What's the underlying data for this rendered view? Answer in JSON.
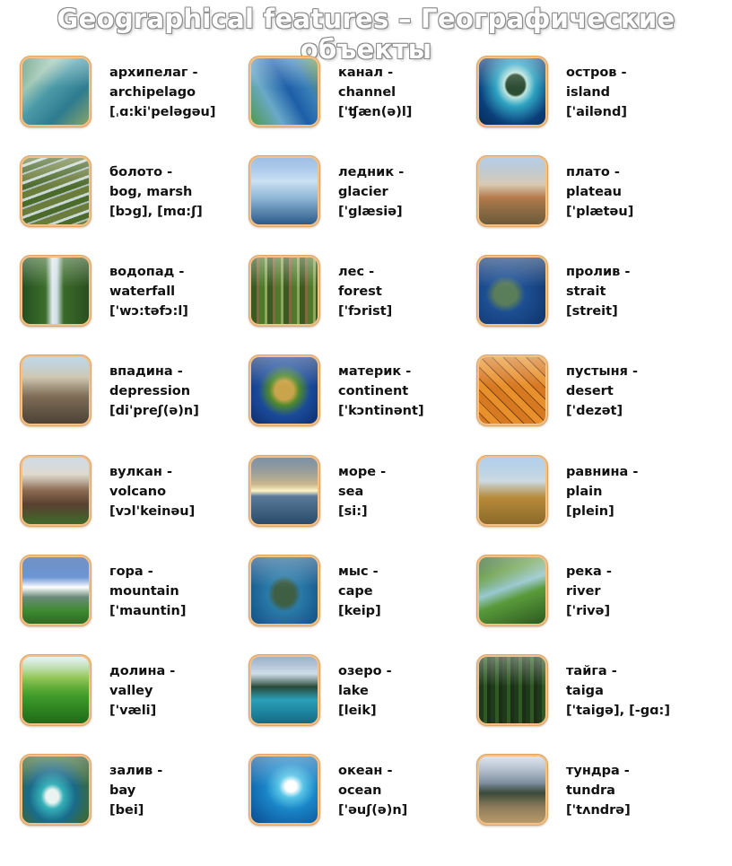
{
  "title": "Geographical features – Географические объекты",
  "cards": [
    {
      "ru": "архипелаг -",
      "en": "archipelago",
      "ipa": "[ˌɑ:ki'peləgəu]",
      "icon": "archipelago-image"
    },
    {
      "ru": "канал -",
      "en": "channel",
      "ipa": "['ʧæn(ə)l]",
      "icon": "channel-image"
    },
    {
      "ru": "остров -",
      "en": "island",
      "ipa": "['ailənd]",
      "icon": "island-image"
    },
    {
      "ru": "болото -",
      "en": "bog, marsh",
      "ipa": "[bɔg], [mɑ:ʃ]",
      "icon": "bog-image"
    },
    {
      "ru": "ледник -",
      "en": "glacier",
      "ipa": "['glæsiə]",
      "icon": "glacier-image"
    },
    {
      "ru": "плато -",
      "en": "plateau",
      "ipa": "['plætəu]",
      "icon": "plateau-image"
    },
    {
      "ru": "водопад -",
      "en": "waterfall",
      "ipa": "['wɔ:təfɔ:l]",
      "icon": "waterfall-image"
    },
    {
      "ru": "лес -",
      "en": "forest",
      "ipa": "['fɔrist]",
      "icon": "forest-image"
    },
    {
      "ru": "пролив -",
      "en": "strait",
      "ipa": "[streit]",
      "icon": "strait-image"
    },
    {
      "ru": "впадина -",
      "en": "depression",
      "ipa": "[di'preʃ(ə)n]",
      "icon": "depression-image"
    },
    {
      "ru": "материк -",
      "en": "continent",
      "ipa": "['kɔntinənt]",
      "icon": "continent-image"
    },
    {
      "ru": "пустыня -",
      "en": "desert",
      "ipa": "['dezət]",
      "icon": "desert-image"
    },
    {
      "ru": "вулкан -",
      "en": "volcano",
      "ipa": "[vɔl'keinəu]",
      "icon": "volcano-image"
    },
    {
      "ru": "море -",
      "en": "sea",
      "ipa": "[si:]",
      "icon": "sea-image"
    },
    {
      "ru": "равнина -",
      "en": "plain",
      "ipa": "[plein]",
      "icon": "plain-image"
    },
    {
      "ru": "гора -",
      "en": "mountain",
      "ipa": "['mauntin]",
      "icon": "mountain-image"
    },
    {
      "ru": "мыс -",
      "en": "cape",
      "ipa": "[keip]",
      "icon": "cape-image"
    },
    {
      "ru": "река -",
      "en": "river",
      "ipa": "['rivə]",
      "icon": "river-image"
    },
    {
      "ru": "долина -",
      "en": "valley",
      "ipa": "['væli]",
      "icon": "valley-image"
    },
    {
      "ru": "озеро -",
      "en": "lake",
      "ipa": "[leik]",
      "icon": "lake-image"
    },
    {
      "ru": "тайга -",
      "en": "taiga",
      "ipa": "['taigə], [-gɑ:]",
      "icon": "taiga-image"
    },
    {
      "ru": "залив -",
      "en": "bay",
      "ipa": "[bei]",
      "icon": "bay-image"
    },
    {
      "ru": "океан -",
      "en": "ocean",
      "ipa": "['əuʃ(ə)n]",
      "icon": "ocean-image"
    },
    {
      "ru": "тундра -",
      "en": "tundra",
      "ipa": "['tʌndrə]",
      "icon": "tundra-image"
    }
  ]
}
